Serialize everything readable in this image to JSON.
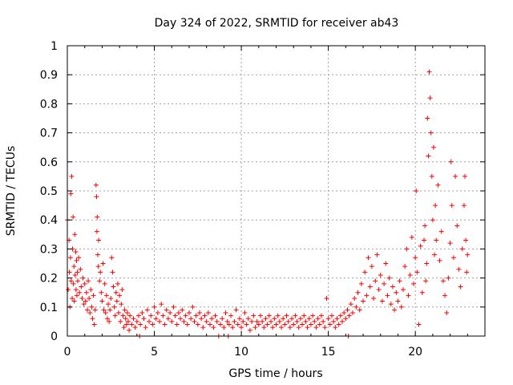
{
  "chart_data": {
    "type": "scatter",
    "title": "Day 324 of 2022, SRMTID for receiver ab43",
    "xlabel": "GPS time / hours",
    "ylabel": "SRMTID / TECUs",
    "xlim": [
      0,
      24
    ],
    "ylim": [
      0,
      1
    ],
    "grid": true,
    "marker": "+",
    "color": "#ff0000",
    "x_ticks": [
      0,
      5,
      10,
      15,
      20
    ],
    "x_tick_labels": [
      "0",
      "5",
      "10",
      "15",
      "20"
    ],
    "y_ticks": [
      0,
      0.1,
      0.2,
      0.3,
      0.4,
      0.5,
      0.6,
      0.7,
      0.8,
      0.9,
      1
    ],
    "y_tick_labels": [
      "0",
      "0.1",
      "0.2",
      "0.3",
      "0.4",
      "0.5",
      "0.6",
      "0.7",
      "0.8",
      "0.9",
      "1"
    ],
    "series": [
      {
        "name": "SRMTID",
        "points": [
          [
            0.0,
            0.4
          ],
          [
            0.05,
            0.16
          ],
          [
            0.1,
            0.33
          ],
          [
            0.12,
            0.22
          ],
          [
            0.15,
            0.1
          ],
          [
            0.18,
            0.27
          ],
          [
            0.2,
            0.49
          ],
          [
            0.22,
            0.19
          ],
          [
            0.25,
            0.55
          ],
          [
            0.28,
            0.13
          ],
          [
            0.3,
            0.3
          ],
          [
            0.33,
            0.41
          ],
          [
            0.35,
            0.18
          ],
          [
            0.38,
            0.24
          ],
          [
            0.4,
            0.12
          ],
          [
            0.43,
            0.35
          ],
          [
            0.45,
            0.21
          ],
          [
            0.48,
            0.29
          ],
          [
            0.5,
            0.16
          ],
          [
            0.53,
            0.26
          ],
          [
            0.55,
            0.14
          ],
          [
            0.58,
            0.22
          ],
          [
            0.6,
            0.19
          ],
          [
            0.65,
            0.27
          ],
          [
            0.7,
            0.15
          ],
          [
            0.75,
            0.23
          ],
          [
            0.8,
            0.17
          ],
          [
            0.85,
            0.13
          ],
          [
            0.9,
            0.2
          ],
          [
            0.95,
            0.11
          ],
          [
            1.0,
            0.18
          ],
          [
            1.05,
            0.12
          ],
          [
            1.1,
            0.15
          ],
          [
            1.15,
            0.09
          ],
          [
            1.2,
            0.19
          ],
          [
            1.25,
            0.13
          ],
          [
            1.3,
            0.08
          ],
          [
            1.35,
            0.16
          ],
          [
            1.4,
            0.1
          ],
          [
            1.45,
            0.06
          ],
          [
            1.5,
            0.14
          ],
          [
            1.55,
            0.04
          ],
          [
            1.6,
            0.09
          ],
          [
            1.65,
            0.52
          ],
          [
            1.68,
            0.48
          ],
          [
            1.7,
            0.36
          ],
          [
            1.72,
            0.41
          ],
          [
            1.75,
            0.28
          ],
          [
            1.78,
            0.24
          ],
          [
            1.8,
            0.33
          ],
          [
            1.85,
            0.19
          ],
          [
            1.9,
            0.22
          ],
          [
            1.95,
            0.15
          ],
          [
            2.0,
            0.12
          ],
          [
            2.05,
            0.25
          ],
          [
            2.1,
            0.09
          ],
          [
            2.15,
            0.18
          ],
          [
            2.2,
            0.08
          ],
          [
            2.25,
            0.14
          ],
          [
            2.3,
            0.06
          ],
          [
            2.35,
            0.11
          ],
          [
            2.4,
            0.05
          ],
          [
            2.45,
            0.09
          ],
          [
            2.5,
            0.13
          ],
          [
            2.55,
            0.27
          ],
          [
            2.6,
            0.22
          ],
          [
            2.65,
            0.17
          ],
          [
            2.7,
            0.1
          ],
          [
            2.75,
            0.07
          ],
          [
            2.8,
            0.15
          ],
          [
            2.85,
            0.12
          ],
          [
            2.9,
            0.18
          ],
          [
            2.95,
            0.08
          ],
          [
            3.0,
            0.14
          ],
          [
            3.05,
            0.05
          ],
          [
            3.1,
            0.11
          ],
          [
            3.15,
            0.16
          ],
          [
            3.2,
            0.07
          ],
          [
            3.25,
            0.03
          ],
          [
            3.3,
            0.09
          ],
          [
            3.35,
            0.06
          ],
          [
            3.4,
            0.04
          ],
          [
            3.45,
            0.08
          ],
          [
            3.5,
            0.05
          ],
          [
            3.55,
            0.02
          ],
          [
            3.6,
            0.07
          ],
          [
            3.7,
            0.04
          ],
          [
            3.8,
            0.06
          ],
          [
            3.9,
            0.03
          ],
          [
            4.0,
            0.05
          ],
          [
            4.1,
            0.07
          ],
          [
            4.15,
            0.0
          ],
          [
            4.2,
            0.04
          ],
          [
            4.3,
            0.08
          ],
          [
            4.4,
            0.06
          ],
          [
            4.5,
            0.03
          ],
          [
            4.6,
            0.09
          ],
          [
            4.7,
            0.05
          ],
          [
            4.8,
            0.07
          ],
          [
            4.9,
            0.04
          ],
          [
            5.0,
            0.1
          ],
          [
            5.1,
            0.06
          ],
          [
            5.2,
            0.08
          ],
          [
            5.3,
            0.05
          ],
          [
            5.4,
            0.11
          ],
          [
            5.5,
            0.07
          ],
          [
            5.6,
            0.04
          ],
          [
            5.7,
            0.09
          ],
          [
            5.8,
            0.06
          ],
          [
            5.9,
            0.08
          ],
          [
            6.0,
            0.05
          ],
          [
            6.1,
            0.1
          ],
          [
            6.2,
            0.07
          ],
          [
            6.3,
            0.04
          ],
          [
            6.4,
            0.08
          ],
          [
            6.5,
            0.06
          ],
          [
            6.6,
            0.09
          ],
          [
            6.7,
            0.05
          ],
          [
            6.8,
            0.07
          ],
          [
            6.9,
            0.04
          ],
          [
            7.0,
            0.08
          ],
          [
            7.1,
            0.06
          ],
          [
            7.2,
            0.1
          ],
          [
            7.3,
            0.05
          ],
          [
            7.4,
            0.07
          ],
          [
            7.5,
            0.04
          ],
          [
            7.6,
            0.08
          ],
          [
            7.7,
            0.06
          ],
          [
            7.8,
            0.03
          ],
          [
            7.9,
            0.07
          ],
          [
            8.0,
            0.05
          ],
          [
            8.1,
            0.08
          ],
          [
            8.2,
            0.04
          ],
          [
            8.3,
            0.06
          ],
          [
            8.4,
            0.03
          ],
          [
            8.5,
            0.07
          ],
          [
            8.6,
            0.05
          ],
          [
            8.7,
            0.0
          ],
          [
            8.8,
            0.04
          ],
          [
            8.9,
            0.06
          ],
          [
            9.0,
            0.03
          ],
          [
            9.1,
            0.08
          ],
          [
            9.2,
            0.05
          ],
          [
            9.25,
            0.0
          ],
          [
            9.3,
            0.04
          ],
          [
            9.4,
            0.07
          ],
          [
            9.5,
            0.03
          ],
          [
            9.6,
            0.05
          ],
          [
            9.7,
            0.09
          ],
          [
            9.8,
            0.04
          ],
          [
            9.9,
            0.06
          ],
          [
            10.0,
            0.03
          ],
          [
            10.1,
            0.05
          ],
          [
            10.2,
            0.08
          ],
          [
            10.3,
            0.04
          ],
          [
            10.4,
            0.06
          ],
          [
            10.5,
            0.02
          ],
          [
            10.6,
            0.05
          ],
          [
            10.7,
            0.07
          ],
          [
            10.8,
            0.03
          ],
          [
            10.9,
            0.05
          ],
          [
            11.0,
            0.04
          ],
          [
            11.1,
            0.07
          ],
          [
            11.2,
            0.05
          ],
          [
            11.3,
            0.03
          ],
          [
            11.4,
            0.06
          ],
          [
            11.5,
            0.04
          ],
          [
            11.6,
            0.07
          ],
          [
            11.7,
            0.05
          ],
          [
            11.8,
            0.03
          ],
          [
            11.9,
            0.06
          ],
          [
            12.0,
            0.04
          ],
          [
            12.1,
            0.07
          ],
          [
            12.2,
            0.05
          ],
          [
            12.3,
            0.03
          ],
          [
            12.4,
            0.06
          ],
          [
            12.5,
            0.04
          ],
          [
            12.6,
            0.07
          ],
          [
            12.7,
            0.05
          ],
          [
            12.8,
            0.03
          ],
          [
            12.9,
            0.06
          ],
          [
            13.0,
            0.04
          ],
          [
            13.1,
            0.07
          ],
          [
            13.2,
            0.05
          ],
          [
            13.3,
            0.03
          ],
          [
            13.4,
            0.06
          ],
          [
            13.5,
            0.04
          ],
          [
            13.6,
            0.07
          ],
          [
            13.7,
            0.05
          ],
          [
            13.8,
            0.03
          ],
          [
            13.9,
            0.06
          ],
          [
            14.0,
            0.04
          ],
          [
            14.1,
            0.07
          ],
          [
            14.2,
            0.05
          ],
          [
            14.3,
            0.03
          ],
          [
            14.4,
            0.06
          ],
          [
            14.5,
            0.04
          ],
          [
            14.6,
            0.07
          ],
          [
            14.7,
            0.05
          ],
          [
            14.8,
            0.03
          ],
          [
            14.9,
            0.13
          ],
          [
            15.0,
            0.06
          ],
          [
            15.1,
            0.04
          ],
          [
            15.2,
            0.07
          ],
          [
            15.3,
            0.05
          ],
          [
            15.4,
            0.03
          ],
          [
            15.5,
            0.06
          ],
          [
            15.6,
            0.04
          ],
          [
            15.7,
            0.07
          ],
          [
            15.8,
            0.05
          ],
          [
            15.9,
            0.08
          ],
          [
            16.0,
            0.06
          ],
          [
            16.1,
            0.09
          ],
          [
            16.15,
            0.0
          ],
          [
            16.2,
            0.07
          ],
          [
            16.3,
            0.11
          ],
          [
            16.4,
            0.08
          ],
          [
            16.5,
            0.13
          ],
          [
            16.6,
            0.1
          ],
          [
            16.7,
            0.15
          ],
          [
            16.8,
            0.09
          ],
          [
            16.9,
            0.18
          ],
          [
            17.0,
            0.12
          ],
          [
            17.1,
            0.22
          ],
          [
            17.2,
            0.14
          ],
          [
            17.3,
            0.27
          ],
          [
            17.4,
            0.17
          ],
          [
            17.5,
            0.24
          ],
          [
            17.6,
            0.13
          ],
          [
            17.7,
            0.19
          ],
          [
            17.8,
            0.28
          ],
          [
            17.9,
            0.16
          ],
          [
            18.0,
            0.21
          ],
          [
            18.1,
            0.12
          ],
          [
            18.2,
            0.18
          ],
          [
            18.3,
            0.25
          ],
          [
            18.4,
            0.14
          ],
          [
            18.5,
            0.2
          ],
          [
            18.6,
            0.11
          ],
          [
            18.7,
            0.17
          ],
          [
            18.8,
            0.09
          ],
          [
            18.9,
            0.15
          ],
          [
            19.0,
            0.12
          ],
          [
            19.1,
            0.19
          ],
          [
            19.2,
            0.1
          ],
          [
            19.3,
            0.16
          ],
          [
            19.4,
            0.24
          ],
          [
            19.5,
            0.3
          ],
          [
            19.6,
            0.14
          ],
          [
            19.7,
            0.21
          ],
          [
            19.8,
            0.34
          ],
          [
            19.9,
            0.18
          ],
          [
            20.0,
            0.27
          ],
          [
            20.05,
            0.5
          ],
          [
            20.1,
            0.22
          ],
          [
            20.2,
            0.04
          ],
          [
            20.3,
            0.31
          ],
          [
            20.4,
            0.15
          ],
          [
            20.5,
            0.33
          ],
          [
            20.55,
            0.38
          ],
          [
            20.6,
            0.19
          ],
          [
            20.65,
            0.25
          ],
          [
            20.7,
            0.75
          ],
          [
            20.75,
            0.62
          ],
          [
            20.8,
            0.91
          ],
          [
            20.85,
            0.82
          ],
          [
            20.9,
            0.7
          ],
          [
            20.95,
            0.55
          ],
          [
            21.0,
            0.4
          ],
          [
            21.05,
            0.65
          ],
          [
            21.1,
            0.28
          ],
          [
            21.15,
            0.45
          ],
          [
            21.2,
            0.33
          ],
          [
            21.3,
            0.52
          ],
          [
            21.4,
            0.26
          ],
          [
            21.5,
            0.36
          ],
          [
            21.6,
            0.19
          ],
          [
            21.7,
            0.14
          ],
          [
            21.8,
            0.08
          ],
          [
            21.9,
            0.2
          ],
          [
            22.0,
            0.32
          ],
          [
            22.05,
            0.6
          ],
          [
            22.1,
            0.45
          ],
          [
            22.2,
            0.27
          ],
          [
            22.3,
            0.55
          ],
          [
            22.4,
            0.38
          ],
          [
            22.5,
            0.23
          ],
          [
            22.6,
            0.17
          ],
          [
            22.7,
            0.3
          ],
          [
            22.8,
            0.45
          ],
          [
            22.85,
            0.55
          ],
          [
            22.9,
            0.33
          ],
          [
            22.95,
            0.22
          ],
          [
            23.0,
            0.28
          ]
        ]
      }
    ]
  }
}
